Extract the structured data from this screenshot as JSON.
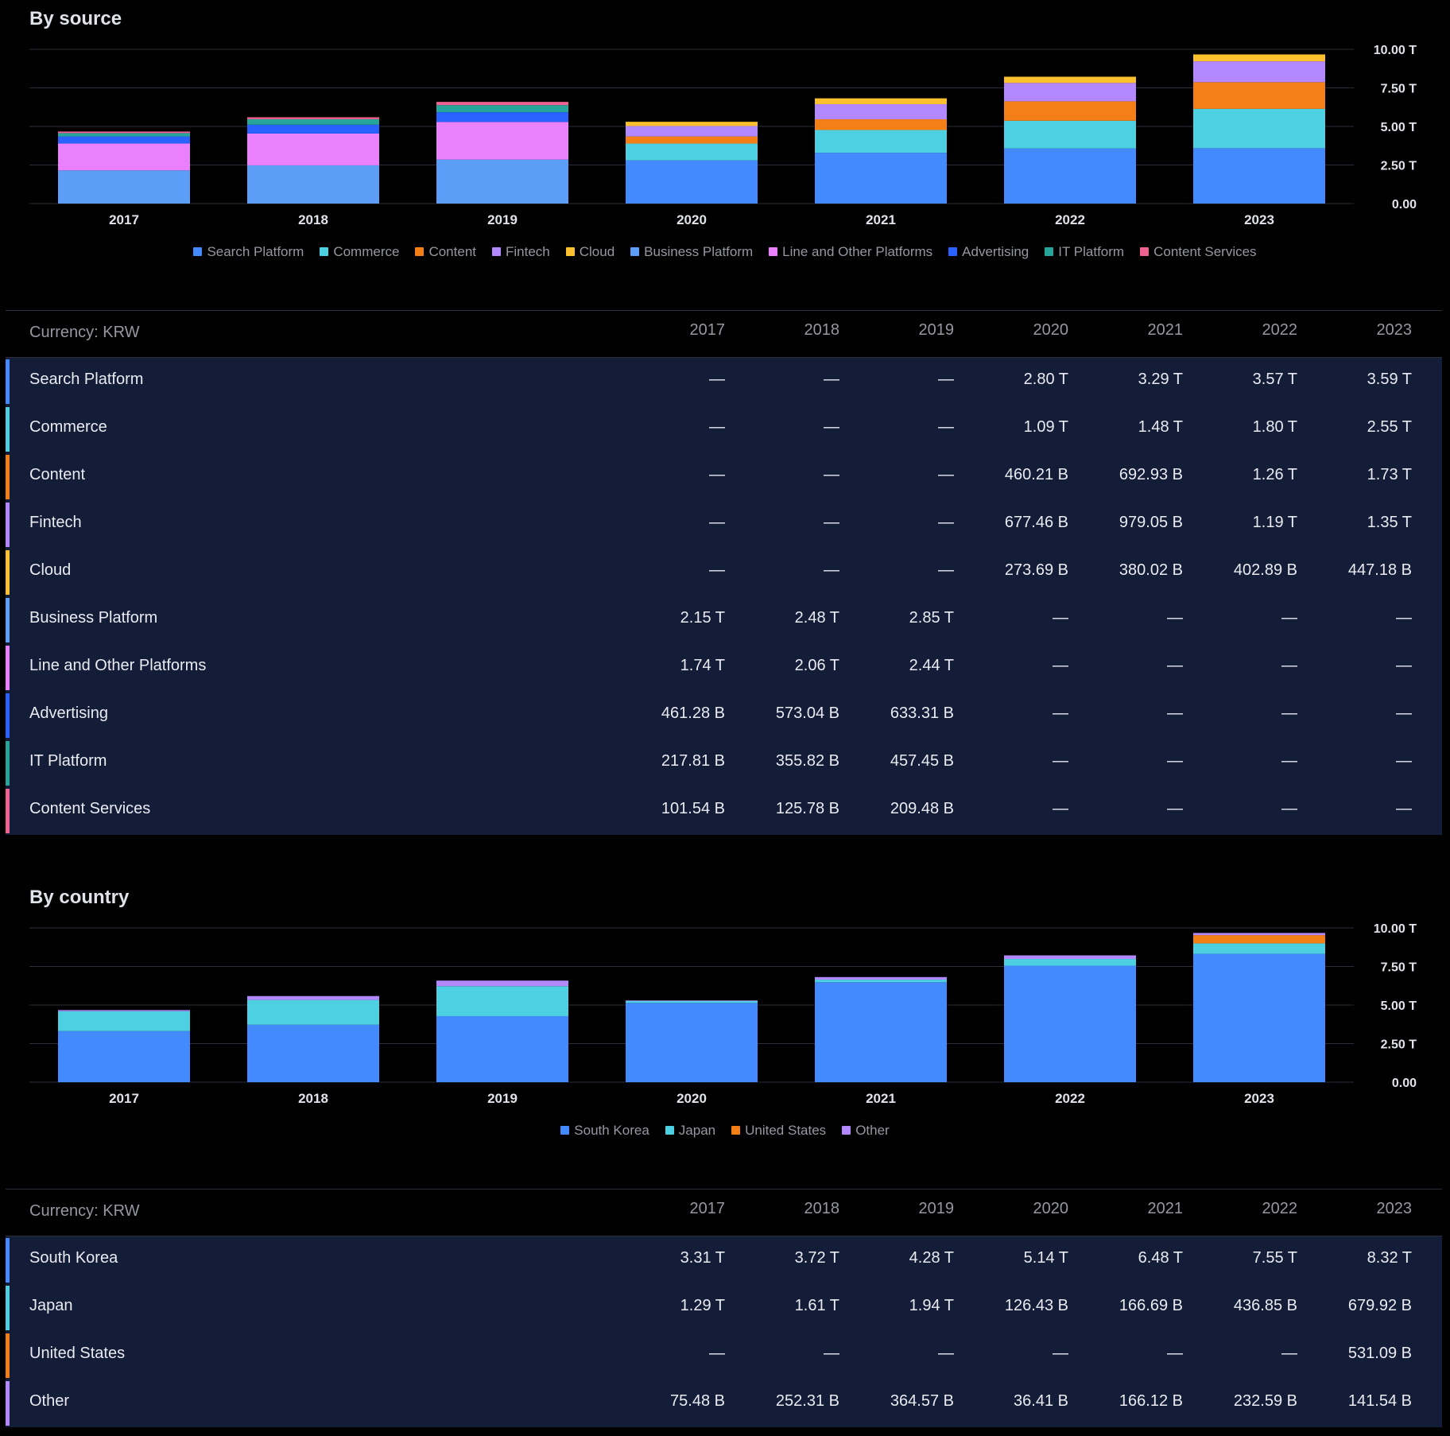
{
  "colors": {
    "background": "#000000",
    "row_bg": "#141d38",
    "grid": "#2a2e39",
    "axis_text": "#e1e3ea"
  },
  "source_section": {
    "title": "By source",
    "currency_label": "Currency: KRW",
    "years": [
      "2017",
      "2018",
      "2019",
      "2020",
      "2021",
      "2022",
      "2023"
    ],
    "rows": [
      {
        "label": "Search Platform",
        "color": "#448aff",
        "values": [
          "—",
          "—",
          "—",
          "2.80 T",
          "3.29 T",
          "3.57 T",
          "3.59 T"
        ]
      },
      {
        "label": "Commerce",
        "color": "#4dd0e1",
        "values": [
          "—",
          "—",
          "—",
          "1.09 T",
          "1.48 T",
          "1.80 T",
          "2.55 T"
        ]
      },
      {
        "label": "Content",
        "color": "#f57f17",
        "values": [
          "—",
          "—",
          "—",
          "460.21 B",
          "692.93 B",
          "1.26 T",
          "1.73 T"
        ]
      },
      {
        "label": "Fintech",
        "color": "#b388ff",
        "values": [
          "—",
          "—",
          "—",
          "677.46 B",
          "979.05 B",
          "1.19 T",
          "1.35 T"
        ]
      },
      {
        "label": "Cloud",
        "color": "#fbc02d",
        "values": [
          "—",
          "—",
          "—",
          "273.69 B",
          "380.02 B",
          "402.89 B",
          "447.18 B"
        ]
      },
      {
        "label": "Business Platform",
        "color": "#5c9ef7",
        "values": [
          "2.15 T",
          "2.48 T",
          "2.85 T",
          "—",
          "—",
          "—",
          "—"
        ]
      },
      {
        "label": "Line and Other Platforms",
        "color": "#ea80fc",
        "values": [
          "1.74 T",
          "2.06 T",
          "2.44 T",
          "—",
          "—",
          "—",
          "—"
        ]
      },
      {
        "label": "Advertising",
        "color": "#2962ff",
        "values": [
          "461.28 B",
          "573.04 B",
          "633.31 B",
          "—",
          "—",
          "—",
          "—"
        ]
      },
      {
        "label": "IT Platform",
        "color": "#26a69a",
        "values": [
          "217.81 B",
          "355.82 B",
          "457.45 B",
          "—",
          "—",
          "—",
          "—"
        ]
      },
      {
        "label": "Content Services",
        "color": "#f06292",
        "values": [
          "101.54 B",
          "125.78 B",
          "209.48 B",
          "—",
          "—",
          "—",
          "—"
        ]
      }
    ]
  },
  "country_section": {
    "title": "By country",
    "currency_label": "Currency: KRW",
    "years": [
      "2017",
      "2018",
      "2019",
      "2020",
      "2021",
      "2022",
      "2023"
    ],
    "rows": [
      {
        "label": "South Korea",
        "color": "#448aff",
        "values": [
          "3.31 T",
          "3.72 T",
          "4.28 T",
          "5.14 T",
          "6.48 T",
          "7.55 T",
          "8.32 T"
        ]
      },
      {
        "label": "Japan",
        "color": "#4dd0e1",
        "values": [
          "1.29 T",
          "1.61 T",
          "1.94 T",
          "126.43 B",
          "166.69 B",
          "436.85 B",
          "679.92 B"
        ]
      },
      {
        "label": "United States",
        "color": "#f57f17",
        "values": [
          "—",
          "—",
          "—",
          "—",
          "—",
          "—",
          "531.09 B"
        ]
      },
      {
        "label": "Other",
        "color": "#b388ff",
        "values": [
          "75.48 B",
          "252.31 B",
          "364.57 B",
          "36.41 B",
          "166.12 B",
          "232.59 B",
          "141.54 B"
        ]
      }
    ]
  },
  "chart_data": [
    {
      "type": "bar",
      "stacked": true,
      "title": "By source",
      "categories": [
        "2017",
        "2018",
        "2019",
        "2020",
        "2021",
        "2022",
        "2023"
      ],
      "ylim": [
        0,
        10
      ],
      "y_ticks": [
        "0.00",
        "2.50 T",
        "5.00 T",
        "7.50 T",
        "10.00 T"
      ],
      "y_unit": "T KRW",
      "grid": true,
      "legend_position": "bottom",
      "series": [
        {
          "name": "Search Platform",
          "color": "#448aff",
          "values": [
            0,
            0,
            0,
            2.8,
            3.29,
            3.57,
            3.59
          ]
        },
        {
          "name": "Commerce",
          "color": "#4dd0e1",
          "values": [
            0,
            0,
            0,
            1.09,
            1.48,
            1.8,
            2.55
          ]
        },
        {
          "name": "Content",
          "color": "#f57f17",
          "values": [
            0,
            0,
            0,
            0.46021,
            0.69293,
            1.26,
            1.73
          ]
        },
        {
          "name": "Fintech",
          "color": "#b388ff",
          "values": [
            0,
            0,
            0,
            0.67746,
            0.97905,
            1.19,
            1.35
          ]
        },
        {
          "name": "Cloud",
          "color": "#fbc02d",
          "values": [
            0,
            0,
            0,
            0.27369,
            0.38002,
            0.40289,
            0.44718
          ]
        },
        {
          "name": "Business Platform",
          "color": "#5c9ef7",
          "values": [
            2.15,
            2.48,
            2.85,
            0,
            0,
            0,
            0
          ]
        },
        {
          "name": "Line and Other Platforms",
          "color": "#ea80fc",
          "values": [
            1.74,
            2.06,
            2.44,
            0,
            0,
            0,
            0
          ]
        },
        {
          "name": "Advertising",
          "color": "#2962ff",
          "values": [
            0.46128,
            0.57304,
            0.63331,
            0,
            0,
            0,
            0
          ]
        },
        {
          "name": "IT Platform",
          "color": "#26a69a",
          "values": [
            0.21781,
            0.35582,
            0.45745,
            0,
            0,
            0,
            0
          ]
        },
        {
          "name": "Content Services",
          "color": "#f06292",
          "values": [
            0.10154,
            0.12578,
            0.20948,
            0,
            0,
            0,
            0
          ]
        }
      ]
    },
    {
      "type": "bar",
      "stacked": true,
      "title": "By country",
      "categories": [
        "2017",
        "2018",
        "2019",
        "2020",
        "2021",
        "2022",
        "2023"
      ],
      "ylim": [
        0,
        10
      ],
      "y_ticks": [
        "0.00",
        "2.50 T",
        "5.00 T",
        "7.50 T",
        "10.00 T"
      ],
      "y_unit": "T KRW",
      "grid": true,
      "legend_position": "bottom",
      "series": [
        {
          "name": "South Korea",
          "color": "#448aff",
          "values": [
            3.31,
            3.72,
            4.28,
            5.14,
            6.48,
            7.55,
            8.32
          ]
        },
        {
          "name": "Japan",
          "color": "#4dd0e1",
          "values": [
            1.29,
            1.61,
            1.94,
            0.12643,
            0.16669,
            0.43685,
            0.67992
          ]
        },
        {
          "name": "United States",
          "color": "#f57f17",
          "values": [
            0,
            0,
            0,
            0,
            0,
            0,
            0.53109
          ]
        },
        {
          "name": "Other",
          "color": "#b388ff",
          "values": [
            0.07548,
            0.25231,
            0.36457,
            0.03641,
            0.16612,
            0.23259,
            0.14154
          ]
        }
      ]
    }
  ]
}
